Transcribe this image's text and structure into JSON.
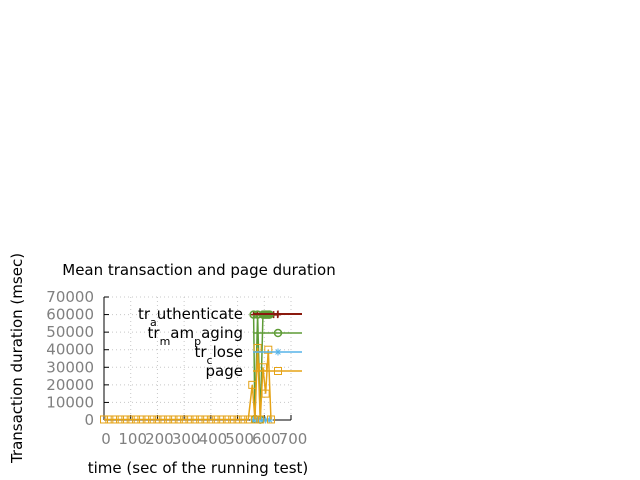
{
  "chart_data": {
    "type": "line",
    "title": "Mean transaction and page duration",
    "xlabel": "time (sec of the running test)",
    "ylabel": "Transaction duration (msec)",
    "xlim": [
      0,
      700
    ],
    "ylim": [
      0,
      70000
    ],
    "x_ticks": [
      "0",
      "100",
      "200",
      "300",
      "400",
      "500",
      "600",
      "700"
    ],
    "y_ticks": [
      "0",
      "10000",
      "20000",
      "30000",
      "40000",
      "50000",
      "60000",
      "70000"
    ],
    "grid": true,
    "legend_position": "top-right",
    "series": [
      {
        "name_base": "tr",
        "name_sub": "a",
        "name_rest": "uthenticate",
        "color": "#8b1a0e",
        "marker": "plus",
        "x": [
          560,
          575,
          590,
          605,
          620,
          635,
          650
        ],
        "y": [
          60000,
          60000,
          60000,
          60000,
          60000,
          60000,
          60000
        ]
      },
      {
        "name_base": "tr",
        "name_sub": "m",
        "name_rest": "am",
        "name_sub2": "p",
        "name_rest2": "aging",
        "color": "#5e9c36",
        "marker": "circle",
        "x": [
          560,
          565,
          575,
          585,
          595,
          600,
          605,
          610,
          615,
          620
        ],
        "y": [
          60000,
          500,
          60000,
          200,
          60000,
          60000,
          60000,
          60000,
          60000,
          60000
        ]
      },
      {
        "name_base": "tr",
        "name_sub": "c",
        "name_rest": "lose",
        "color": "#56b4e9",
        "marker": "star",
        "x": [
          560,
          575,
          590,
          605,
          620
        ],
        "y": [
          0,
          0,
          0,
          0,
          0
        ]
      },
      {
        "name_base": "page",
        "name_sub": "",
        "name_rest": "",
        "color": "#e5a317",
        "marker": "square",
        "x": [
          0,
          20,
          40,
          60,
          80,
          100,
          120,
          140,
          160,
          180,
          200,
          220,
          240,
          260,
          280,
          300,
          320,
          340,
          360,
          380,
          400,
          420,
          440,
          460,
          480,
          500,
          520,
          540,
          555,
          565,
          575,
          585,
          595,
          605,
          615,
          625
        ],
        "y": [
          300,
          300,
          300,
          300,
          300,
          300,
          300,
          300,
          300,
          300,
          300,
          300,
          300,
          300,
          300,
          300,
          300,
          300,
          300,
          300,
          300,
          300,
          300,
          300,
          300,
          300,
          300,
          300,
          20000,
          300,
          41000,
          300,
          30000,
          15000,
          40000,
          300
        ]
      }
    ]
  }
}
